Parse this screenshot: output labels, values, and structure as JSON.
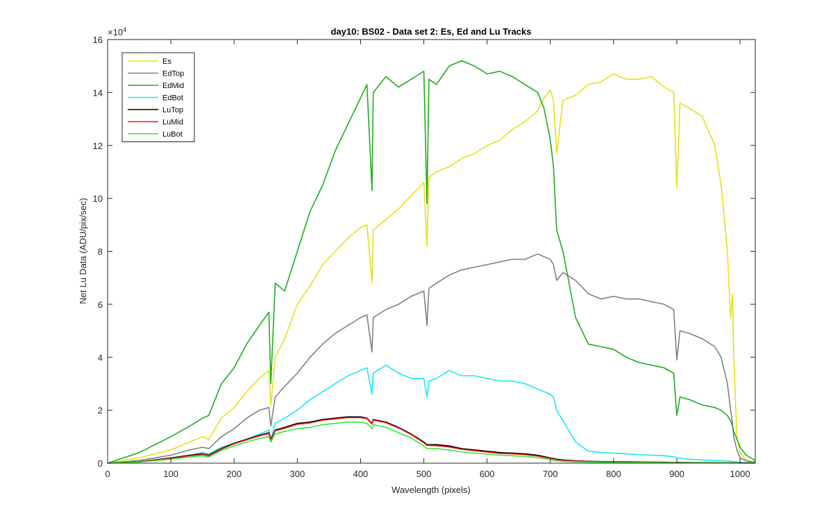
{
  "chart_data": {
    "type": "line",
    "title": "day10: BS02 - Data set 2: Es, Ed and Lu Tracks",
    "xlabel": "Wavelength (pixels)",
    "ylabel": "Net Lu Data (ADU/pix/sec)",
    "y_exponent_label": "×10",
    "y_exponent_power": "4",
    "xlim": [
      0,
      1024
    ],
    "ylim": [
      0,
      160000
    ],
    "x_ticks": [
      0,
      100,
      200,
      300,
      400,
      500,
      600,
      700,
      800,
      900,
      1000
    ],
    "x_tick_labels": [
      "0",
      "100",
      "200",
      "300",
      "400",
      "500",
      "600",
      "700",
      "800",
      "900",
      "1000"
    ],
    "y_ticks": [
      0,
      20000,
      40000,
      60000,
      80000,
      100000,
      120000,
      140000,
      160000
    ],
    "y_tick_labels": [
      "0",
      "2",
      "4",
      "6",
      "8",
      "10",
      "12",
      "14",
      "16"
    ],
    "grid": false,
    "legend_position": "top-left",
    "series": [
      {
        "name": "Es",
        "color": "#e6e01a",
        "x": [
          0,
          50,
          100,
          130,
          150,
          160,
          180,
          200,
          220,
          240,
          255,
          258,
          265,
          280,
          300,
          320,
          340,
          360,
          380,
          400,
          410,
          418,
          420,
          440,
          460,
          480,
          500,
          505,
          508,
          520,
          540,
          560,
          580,
          600,
          620,
          640,
          660,
          680,
          690,
          700,
          705,
          710,
          720,
          740,
          760,
          780,
          800,
          820,
          840,
          860,
          880,
          895,
          900,
          905,
          920,
          940,
          960,
          970,
          980,
          985,
          988,
          990,
          995,
          1000,
          1010,
          1024
        ],
        "y": [
          0,
          2000,
          5000,
          8000,
          10000,
          9000,
          17000,
          21000,
          27000,
          32000,
          35000,
          22000,
          40000,
          47000,
          60000,
          67000,
          75000,
          80000,
          85000,
          89000,
          90000,
          68000,
          88000,
          92000,
          96000,
          101000,
          106000,
          82000,
          108000,
          110000,
          112000,
          115000,
          117000,
          120000,
          122000,
          126000,
          129000,
          133000,
          138000,
          141000,
          137000,
          117000,
          137000,
          139000,
          143000,
          144000,
          147000,
          145000,
          145000,
          146000,
          142000,
          140000,
          104000,
          136000,
          134000,
          131000,
          120000,
          105000,
          80000,
          55000,
          64000,
          40000,
          10000,
          4000,
          1000,
          500
        ]
      },
      {
        "name": "EdTop",
        "color": "#808080",
        "x": [
          0,
          50,
          100,
          130,
          150,
          160,
          180,
          200,
          220,
          240,
          255,
          258,
          265,
          280,
          300,
          320,
          340,
          360,
          380,
          400,
          410,
          418,
          420,
          440,
          460,
          480,
          500,
          505,
          508,
          520,
          540,
          560,
          580,
          600,
          620,
          640,
          660,
          680,
          690,
          700,
          705,
          710,
          720,
          740,
          760,
          780,
          800,
          820,
          840,
          860,
          880,
          895,
          900,
          905,
          920,
          940,
          960,
          970,
          980,
          985,
          988,
          990,
          995,
          1000,
          1010,
          1024
        ],
        "y": [
          0,
          1000,
          3000,
          5000,
          6000,
          5500,
          10000,
          13000,
          17000,
          20000,
          21000,
          14000,
          25000,
          29000,
          34000,
          40000,
          45000,
          49000,
          52000,
          55000,
          56000,
          42000,
          55000,
          58000,
          60000,
          63000,
          65000,
          52000,
          66000,
          68000,
          71000,
          73000,
          74000,
          75000,
          76000,
          77000,
          77000,
          79000,
          78000,
          77000,
          75000,
          69000,
          72000,
          69000,
          64000,
          62000,
          63000,
          62000,
          62000,
          61000,
          60000,
          58000,
          39000,
          50000,
          49000,
          47000,
          44000,
          40000,
          30000,
          20000,
          15000,
          10000,
          5000,
          2000,
          800,
          300
        ]
      },
      {
        "name": "EdMid",
        "color": "#1fab1f",
        "x": [
          0,
          50,
          100,
          130,
          150,
          160,
          180,
          200,
          220,
          240,
          255,
          258,
          265,
          280,
          300,
          320,
          340,
          360,
          380,
          400,
          410,
          418,
          420,
          440,
          460,
          480,
          500,
          505,
          508,
          520,
          540,
          560,
          580,
          600,
          620,
          640,
          660,
          680,
          690,
          700,
          705,
          710,
          720,
          740,
          760,
          780,
          800,
          820,
          840,
          860,
          880,
          895,
          900,
          905,
          920,
          940,
          960,
          970,
          980,
          985,
          988,
          990,
          995,
          1000,
          1010,
          1024
        ],
        "y": [
          0,
          4000,
          10000,
          14000,
          17000,
          18000,
          30000,
          36000,
          45000,
          52000,
          57000,
          30000,
          68000,
          65000,
          80000,
          95000,
          105000,
          118000,
          128000,
          138000,
          143000,
          103000,
          140000,
          146000,
          142000,
          145000,
          148000,
          98000,
          145000,
          143000,
          150000,
          152000,
          150000,
          147000,
          148000,
          146000,
          143000,
          140000,
          134000,
          122000,
          112000,
          88000,
          80000,
          55000,
          45000,
          44000,
          43000,
          40000,
          38000,
          37000,
          36000,
          34000,
          18000,
          25000,
          24000,
          22000,
          21000,
          20000,
          18000,
          16000,
          14000,
          12000,
          9000,
          6000,
          3000,
          1000
        ]
      },
      {
        "name": "EdBot",
        "color": "#19e8f0",
        "x": [
          0,
          50,
          100,
          130,
          150,
          160,
          180,
          200,
          220,
          240,
          255,
          258,
          265,
          280,
          300,
          320,
          340,
          360,
          380,
          400,
          410,
          418,
          420,
          440,
          460,
          480,
          500,
          505,
          508,
          520,
          540,
          560,
          580,
          600,
          620,
          640,
          660,
          680,
          690,
          700,
          705,
          710,
          720,
          740,
          760,
          780,
          800,
          820,
          840,
          860,
          880,
          895,
          900,
          905,
          920,
          940,
          960,
          970,
          980,
          985,
          988,
          990,
          995,
          1000,
          1010,
          1024
        ],
        "y": [
          0,
          500,
          2000,
          3000,
          4000,
          3500,
          6000,
          7500,
          9000,
          11000,
          12500,
          9000,
          15000,
          17000,
          20000,
          24000,
          27000,
          30000,
          33000,
          35000,
          36000,
          26000,
          34000,
          37000,
          34000,
          32000,
          32000,
          25000,
          31000,
          32000,
          35000,
          33000,
          33000,
          32000,
          31000,
          31000,
          30000,
          28000,
          27000,
          26000,
          25000,
          20000,
          16000,
          8000,
          4500,
          4000,
          3800,
          3500,
          3200,
          3000,
          2800,
          2400,
          2000,
          1800,
          1500,
          1200,
          1000,
          900,
          800,
          700,
          600,
          500,
          400,
          300,
          200,
          100
        ]
      },
      {
        "name": "LuTop",
        "color": "#000000",
        "x": [
          0,
          50,
          100,
          130,
          150,
          160,
          180,
          200,
          220,
          240,
          255,
          258,
          265,
          280,
          300,
          320,
          340,
          360,
          380,
          400,
          410,
          418,
          420,
          440,
          460,
          480,
          500,
          505,
          508,
          520,
          540,
          560,
          580,
          600,
          620,
          640,
          660,
          680,
          690,
          700,
          705,
          710,
          720,
          740,
          760,
          780,
          800,
          820,
          840,
          860,
          880,
          895,
          900,
          905,
          920,
          940,
          960,
          970,
          980,
          985,
          988,
          990,
          995,
          1000,
          1010,
          1024
        ],
        "y": [
          0,
          500,
          2000,
          3000,
          3500,
          3000,
          5500,
          7500,
          9000,
          10500,
          11500,
          9000,
          12500,
          13500,
          15000,
          15500,
          16500,
          17000,
          17500,
          17500,
          17000,
          15000,
          16500,
          15500,
          13500,
          11000,
          8000,
          7000,
          7000,
          7000,
          6500,
          5500,
          5000,
          4500,
          4000,
          3800,
          3500,
          3000,
          2500,
          2000,
          1800,
          1500,
          1200,
          900,
          700,
          600,
          550,
          500,
          450,
          400,
          350,
          300,
          300,
          280,
          250,
          200,
          180,
          170,
          160,
          150,
          140,
          130,
          120,
          100,
          80,
          50
        ]
      },
      {
        "name": "LuMid",
        "color": "#e01919",
        "x": [
          0,
          50,
          100,
          130,
          150,
          160,
          180,
          200,
          220,
          240,
          255,
          258,
          265,
          280,
          300,
          320,
          340,
          360,
          380,
          400,
          410,
          418,
          420,
          440,
          460,
          480,
          500,
          505,
          508,
          520,
          540,
          560,
          580,
          600,
          620,
          640,
          660,
          680,
          690,
          700,
          705,
          710,
          720,
          740,
          760,
          780,
          800,
          820,
          840,
          860,
          880,
          895,
          900,
          905,
          920,
          940,
          960,
          970,
          980,
          985,
          988,
          990,
          995,
          1000,
          1010,
          1024
        ],
        "y": [
          0,
          450,
          1800,
          2800,
          3300,
          2800,
          5300,
          7300,
          8800,
          10300,
          11200,
          8800,
          12200,
          13200,
          14700,
          15200,
          16200,
          16700,
          17200,
          17200,
          16800,
          14800,
          16300,
          15300,
          13300,
          10800,
          7700,
          6700,
          6700,
          6600,
          6100,
          5200,
          4700,
          4200,
          3700,
          3500,
          3200,
          2700,
          2200,
          1800,
          1600,
          1300,
          1000,
          800,
          600,
          500,
          450,
          400,
          350,
          300,
          260,
          230,
          220,
          210,
          190,
          160,
          140,
          130,
          120,
          110,
          100,
          90,
          80,
          70,
          60,
          40
        ]
      },
      {
        "name": "LuBot",
        "color": "#33e833",
        "x": [
          0,
          50,
          100,
          130,
          150,
          160,
          180,
          200,
          220,
          240,
          255,
          258,
          265,
          280,
          300,
          320,
          340,
          360,
          380,
          400,
          410,
          418,
          420,
          440,
          460,
          480,
          500,
          505,
          508,
          520,
          540,
          560,
          580,
          600,
          620,
          640,
          660,
          680,
          690,
          700,
          705,
          710,
          720,
          740,
          760,
          780,
          800,
          820,
          840,
          860,
          880,
          895,
          900,
          905,
          920,
          940,
          960,
          970,
          980,
          985,
          988,
          990,
          995,
          1000,
          1010,
          1024
        ],
        "y": [
          0,
          400,
          1500,
          2300,
          2800,
          2300,
          4800,
          6500,
          8000,
          9300,
          10000,
          8000,
          11000,
          12000,
          13000,
          13500,
          14500,
          15000,
          15500,
          15500,
          15000,
          13000,
          14500,
          13500,
          11500,
          9500,
          6500,
          5500,
          5500,
          5500,
          5000,
          4200,
          3800,
          3400,
          3000,
          2800,
          2500,
          2100,
          1700,
          1300,
          1100,
          900,
          700,
          500,
          400,
          350,
          300,
          270,
          240,
          210,
          180,
          160,
          150,
          140,
          120,
          100,
          90,
          80,
          70,
          60,
          55,
          50,
          40,
          30,
          20,
          10
        ]
      }
    ]
  }
}
